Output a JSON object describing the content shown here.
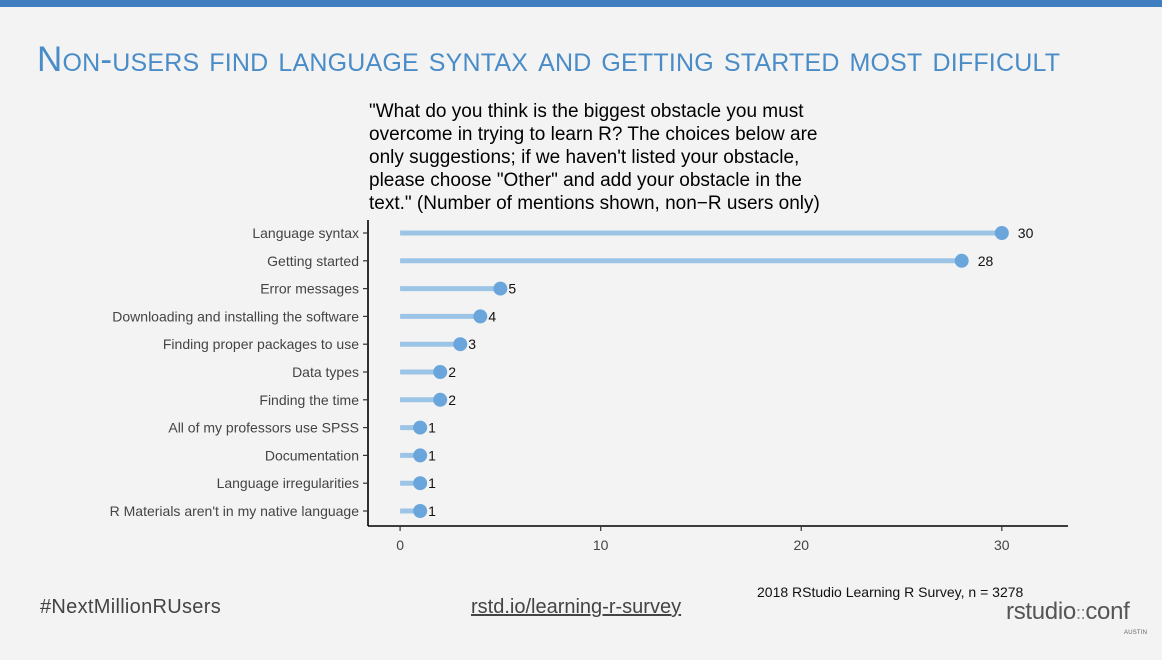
{
  "slide": {
    "title": "Non-users find language syntax and getting started most difficult",
    "hashtag": "#NextMillionRUsers",
    "link": "rstd.io/learning-r-survey",
    "source_note": "2018 RStudio Learning R Survey, n = 3278",
    "logo_main": "rstudio",
    "logo_sep": "::",
    "logo_tail": "conf",
    "logo_sub": "AUSTIN",
    "accent_color": "#4a8cc8",
    "top_bar_color": "#3f7fc0"
  },
  "chart_data": {
    "type": "bar",
    "orientation": "horizontal lollipop",
    "title": "\"What do you think is the biggest obstacle you must overcome in trying to learn R? The choices below are only suggestions; if we haven't listed your obstacle, please choose \"Other\" and add your obstacle in the text.\" (Number of mentions shown, non−R users only)",
    "title_lines": [
      "\"What do you think is the biggest obstacle you must",
      "overcome in trying to learn R? The choices below are",
      "only suggestions; if we haven't listed your obstacle,",
      "please choose \"Other\" and add your obstacle in the",
      "text.\" (Number of mentions shown, non−R users only)"
    ],
    "categories": [
      "Language syntax",
      "Getting started",
      "Error messages",
      "Downloading and installing the software",
      "Finding proper packages to use",
      "Data types",
      "Finding the time",
      "All of my professors use SPSS",
      "Documentation",
      "Language irregularities",
      "R Materials aren't in my native language"
    ],
    "values": [
      30,
      28,
      5,
      4,
      3,
      2,
      2,
      1,
      1,
      1,
      1
    ],
    "xlabel": "",
    "ylabel": "",
    "xlim": [
      -1.6,
      33.3
    ],
    "xticks": [
      0,
      10,
      20,
      30
    ],
    "grid": false,
    "legend": "none",
    "stem_color": "#9cc4e6",
    "dot_color": "#6aa6dc"
  }
}
